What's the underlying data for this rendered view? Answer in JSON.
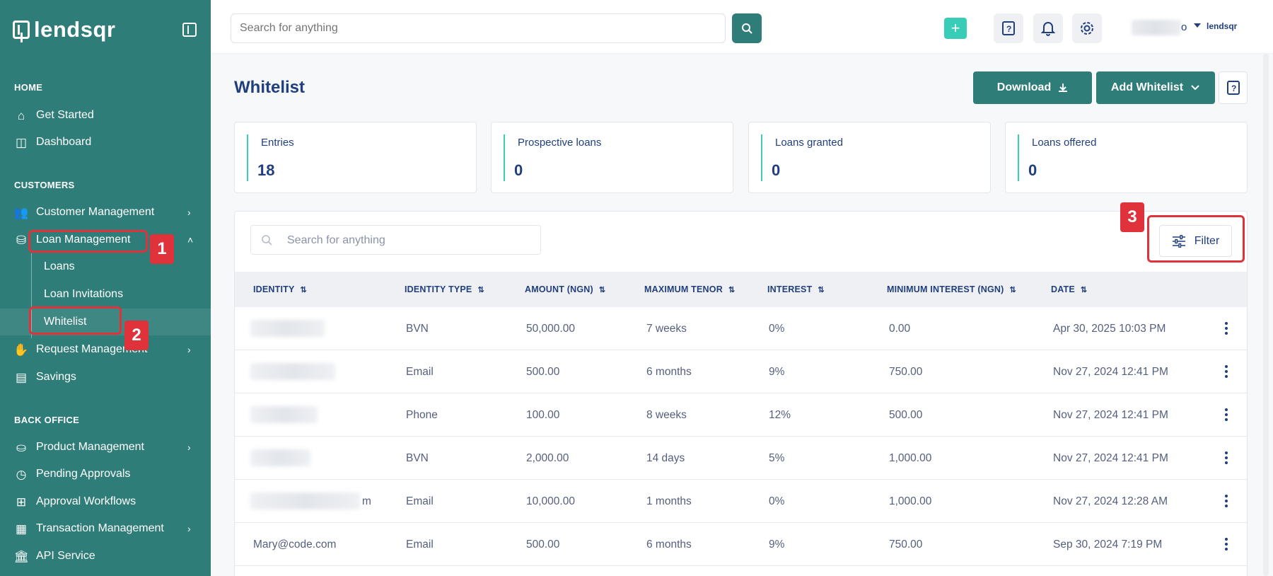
{
  "sidebar": {
    "logo": "lendsqr",
    "sections": {
      "home": "HOME",
      "customers": "CUSTOMERS",
      "back_office": "BACK OFFICE"
    },
    "items": {
      "get_started": "Get Started",
      "dashboard": "Dashboard",
      "customer_management": "Customer Management",
      "loan_management": "Loan Management",
      "loans": "Loans",
      "loan_invitations": "Loan Invitations",
      "whitelist": "Whitelist",
      "request_management": "Request Management",
      "savings": "Savings",
      "product_management": "Product Management",
      "pending_approvals": "Pending Approvals",
      "approval_workflows": "Approval Workflows",
      "transaction_management": "Transaction Management",
      "api_service": "API Service"
    }
  },
  "annotations": [
    "1",
    "2",
    "3"
  ],
  "header": {
    "search_placeholder": "Search for anything",
    "user_name_tail": "o",
    "brand": "lendsqr"
  },
  "page": {
    "title": "Whitelist",
    "download_label": "Download",
    "add_whitelist_label": "Add Whitelist"
  },
  "stats": [
    {
      "label": "Entries",
      "value": "18"
    },
    {
      "label": "Prospective loans",
      "value": "0"
    },
    {
      "label": "Loans granted",
      "value": "0"
    },
    {
      "label": "Loans offered",
      "value": "0"
    }
  ],
  "table": {
    "search_placeholder": "Search for anything",
    "filter_label": "Filter",
    "columns": [
      "IDENTITY",
      "IDENTITY TYPE",
      "AMOUNT (NGN)",
      "MAXIMUM TENOR",
      "INTEREST",
      "MINIMUM INTEREST (NGN)",
      "DATE"
    ],
    "rows": [
      {
        "identity": "",
        "type": "BVN",
        "amount": "50,000.00",
        "tenor": "7 weeks",
        "interest": "0%",
        "min_interest": "0.00",
        "date": "Apr 30, 2025 10:03 PM"
      },
      {
        "identity": "",
        "type": "Email",
        "amount": "500.00",
        "tenor": "6 months",
        "interest": "9%",
        "min_interest": "750.00",
        "date": "Nov 27, 2024 12:41 PM"
      },
      {
        "identity": "",
        "type": "Phone",
        "amount": "100.00",
        "tenor": "8 weeks",
        "interest": "12%",
        "min_interest": "500.00",
        "date": "Nov 27, 2024 12:41 PM"
      },
      {
        "identity": "",
        "type": "BVN",
        "amount": "2,000.00",
        "tenor": "14 days",
        "interest": "5%",
        "min_interest": "1,000.00",
        "date": "Nov 27, 2024 12:41 PM"
      },
      {
        "identity": "m",
        "type": "Email",
        "amount": "10,000.00",
        "tenor": "1 months",
        "interest": "0%",
        "min_interest": "1,000.00",
        "date": "Nov 27, 2024 12:28 AM"
      },
      {
        "identity": "Mary@code.com",
        "type": "Email",
        "amount": "500.00",
        "tenor": "6 months",
        "interest": "9%",
        "min_interest": "750.00",
        "date": "Sep 30, 2024 7:19 PM"
      }
    ]
  },
  "colors": {
    "sidebar": "#2e7d78",
    "accent": "#39cdb8",
    "text": "#213f7d",
    "annotation": "#e0323a"
  }
}
